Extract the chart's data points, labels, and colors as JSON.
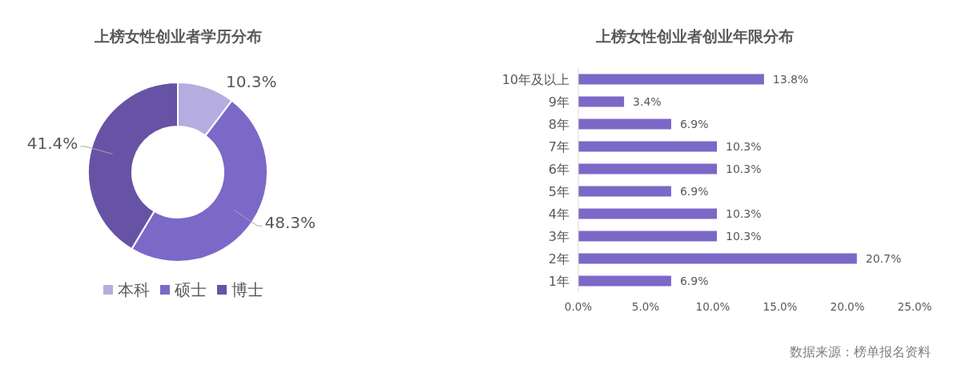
{
  "chart_data": [
    {
      "type": "donut",
      "title": "上榜女性创业者学历分布",
      "categories": [
        "本科",
        "硕士",
        "博士"
      ],
      "values": [
        10.3,
        48.3,
        41.4
      ],
      "colors": [
        "#b5addf",
        "#7b68c7",
        "#6753a6"
      ],
      "value_labels": [
        "10.3%",
        "48.3%",
        "41.4%"
      ],
      "legend": "bottom"
    },
    {
      "type": "bar",
      "orientation": "horizontal",
      "title": "上榜女性创业者创业年限分布",
      "categories": [
        "10年及以上",
        "9年",
        "8年",
        "7年",
        "6年",
        "5年",
        "4年",
        "3年",
        "2年",
        "1年"
      ],
      "values": [
        13.8,
        3.4,
        6.9,
        10.3,
        10.3,
        6.9,
        10.3,
        10.3,
        20.7,
        6.9
      ],
      "color": "#7b68c7",
      "value_labels": [
        "13.8%",
        "3.4%",
        "6.9%",
        "10.3%",
        "10.3%",
        "6.9%",
        "10.3%",
        "10.3%",
        "20.7%",
        "6.9%"
      ],
      "xlim": [
        0,
        25
      ],
      "xticks": [
        {
          "value": 0,
          "label": "0.0%"
        },
        {
          "value": 5,
          "label": "5.0%"
        },
        {
          "value": 10,
          "label": "10.0%"
        },
        {
          "value": 15,
          "label": "15.0%"
        },
        {
          "value": 20,
          "label": "20.0%"
        },
        {
          "value": 25,
          "label": "25.0%"
        }
      ],
      "annotations": [
        "数据来源：榜单报名资料"
      ]
    }
  ]
}
